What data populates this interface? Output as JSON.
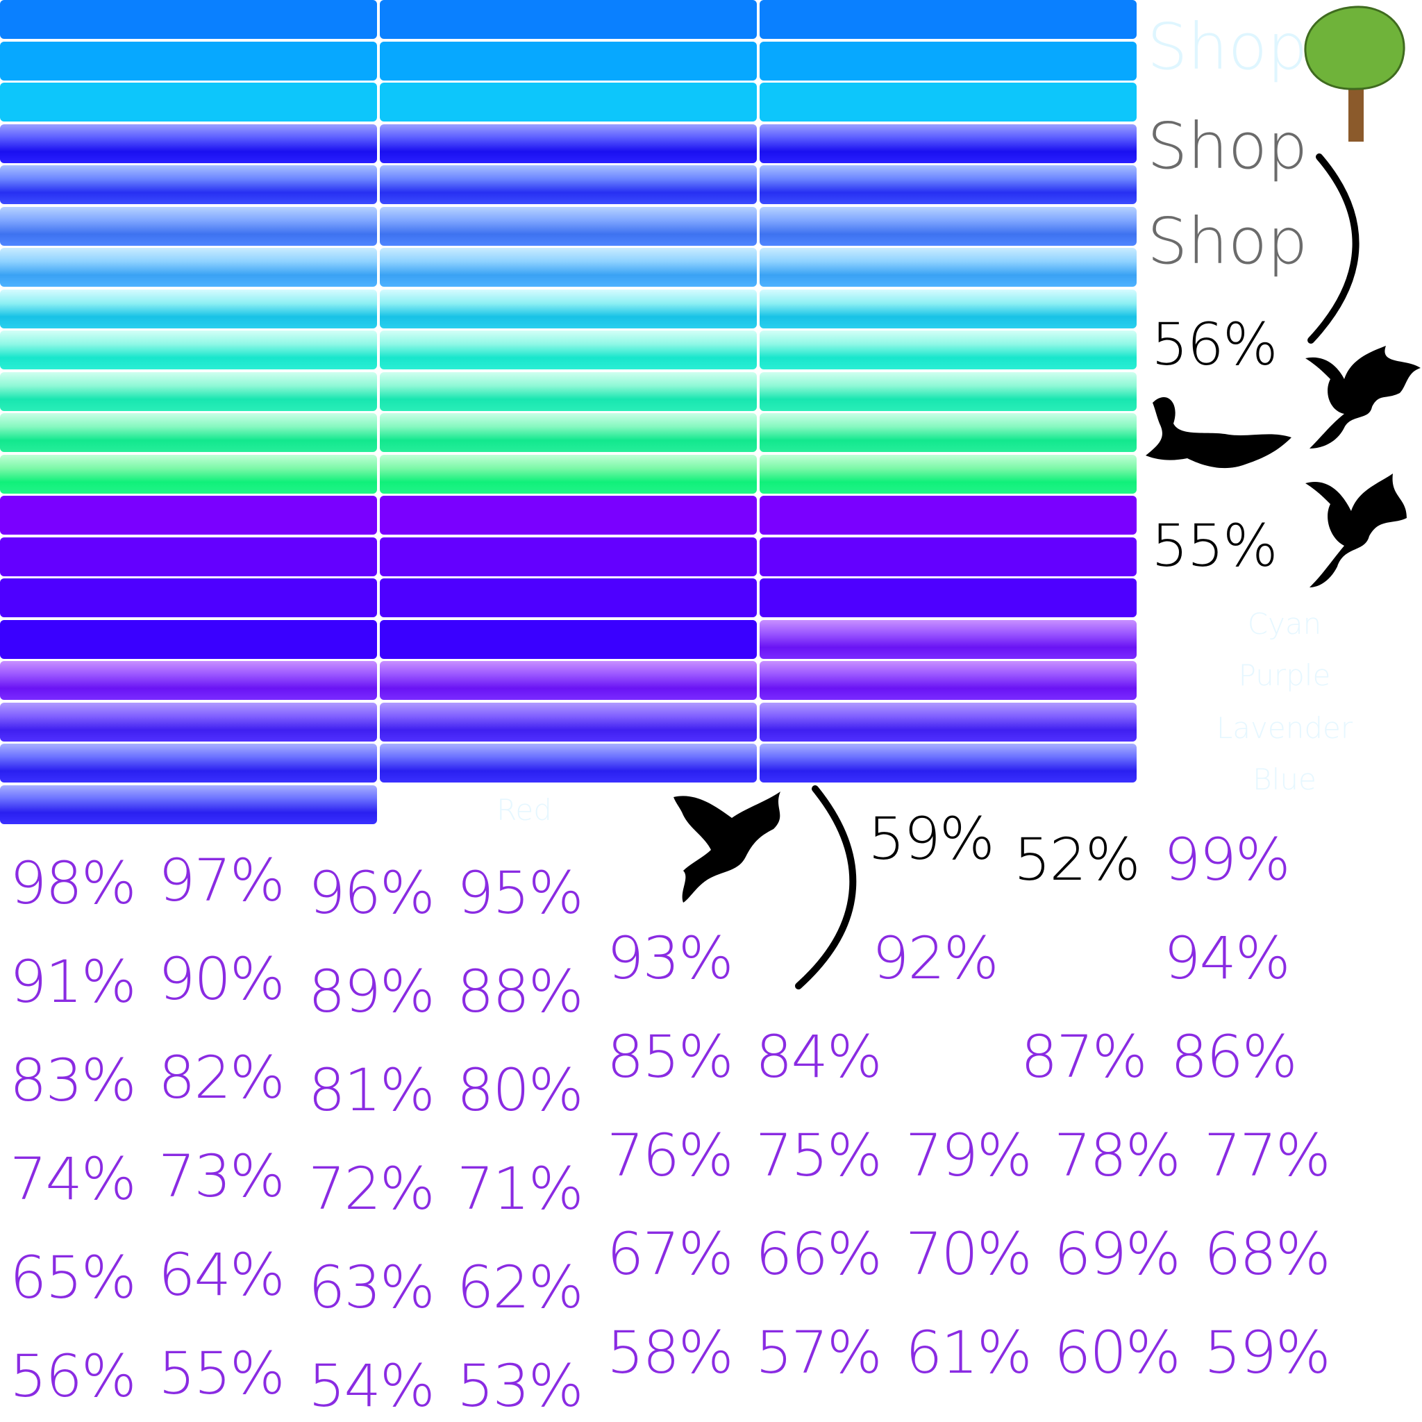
{
  "colors": {
    "percent_text": "#8a2be2",
    "black_text": "#000000",
    "shop_faded": "#dff6ff",
    "shop_gray": "#6b6b6b",
    "label_faded": "#e6f7ff"
  },
  "bar_rows": [
    {
      "cells": [
        "blue-flat",
        "blue-flat",
        "blue-flat"
      ]
    },
    {
      "cells": [
        "sky-flat",
        "sky-flat",
        "sky-flat"
      ]
    },
    {
      "cells": [
        "cyan-flat",
        "cyan-flat",
        "cyan-flat"
      ]
    },
    {
      "cells": [
        "indigo-glossy",
        "indigo-glossy",
        "indigo-glossy"
      ]
    },
    {
      "cells": [
        "periwinkle-glossy",
        "periwinkle-glossy",
        "periwinkle-glossy"
      ]
    },
    {
      "cells": [
        "cornflower-glossy",
        "cornflower-glossy",
        "cornflower-glossy"
      ]
    },
    {
      "cells": [
        "skyblue-glossy",
        "skyblue-glossy",
        "skyblue-glossy"
      ]
    },
    {
      "cells": [
        "aqua-glossy",
        "aqua-glossy",
        "aqua-glossy"
      ]
    },
    {
      "cells": [
        "turquoise-glossy",
        "turquoise-glossy",
        "turquoise-glossy"
      ]
    },
    {
      "cells": [
        "mint-glossy",
        "mint-glossy",
        "mint-glossy"
      ]
    },
    {
      "cells": [
        "seagreen-glossy",
        "seagreen-glossy",
        "seagreen-glossy"
      ]
    },
    {
      "cells": [
        "green-glossy",
        "green-glossy",
        "green-glossy"
      ]
    },
    {
      "cells": [
        "violet-flat",
        "violet-flat",
        "violet-flat"
      ]
    },
    {
      "cells": [
        "violet2-flat",
        "violet2-flat",
        "violet2-flat"
      ]
    },
    {
      "cells": [
        "violet3-flat",
        "violet3-flat",
        "violet3-flat"
      ]
    },
    {
      "cells": [
        "violet4-flat",
        "violet4-flat",
        "purple-glossy"
      ]
    },
    {
      "cells": [
        "purple-glossy",
        "purple-glossy",
        "purple-glossy"
      ]
    },
    {
      "cells": [
        "purpleblue-glossy",
        "purpleblue-glossy",
        "purpleblue-glossy"
      ]
    },
    {
      "cells": [
        "blueviolet-glossy",
        "blueviolet-glossy",
        "blueviolet-glossy"
      ]
    },
    {
      "cells": [
        "blueviolet-glossy"
      ]
    }
  ],
  "shop_labels": [
    "Shop",
    "Shop",
    "Shop"
  ],
  "color_labels": [
    "Cyan",
    "Purple",
    "Lavender",
    "Blue"
  ],
  "red_label": "Red",
  "black_percents": [
    "56%",
    "55%",
    "59%",
    "52%"
  ],
  "purple_percents": [
    "98%",
    "97%",
    "96%",
    "95%",
    "91%",
    "90%",
    "89%",
    "88%",
    "83%",
    "82%",
    "81%",
    "80%",
    "74%",
    "73%",
    "72%",
    "71%",
    "65%",
    "64%",
    "63%",
    "62%",
    "56%",
    "55%",
    "54%",
    "53%",
    "99%",
    "93%",
    "92%",
    "94%",
    "85%",
    "84%",
    "87%",
    "86%",
    "76%",
    "75%",
    "79%",
    "78%",
    "77%",
    "67%",
    "66%",
    "70%",
    "69%",
    "68%",
    "58%",
    "57%",
    "61%",
    "60%",
    "59%"
  ],
  "icons": [
    "tree-icon",
    "curve-arc-icon",
    "bat-silhouette-icon",
    "bird-silhouette-icon"
  ]
}
